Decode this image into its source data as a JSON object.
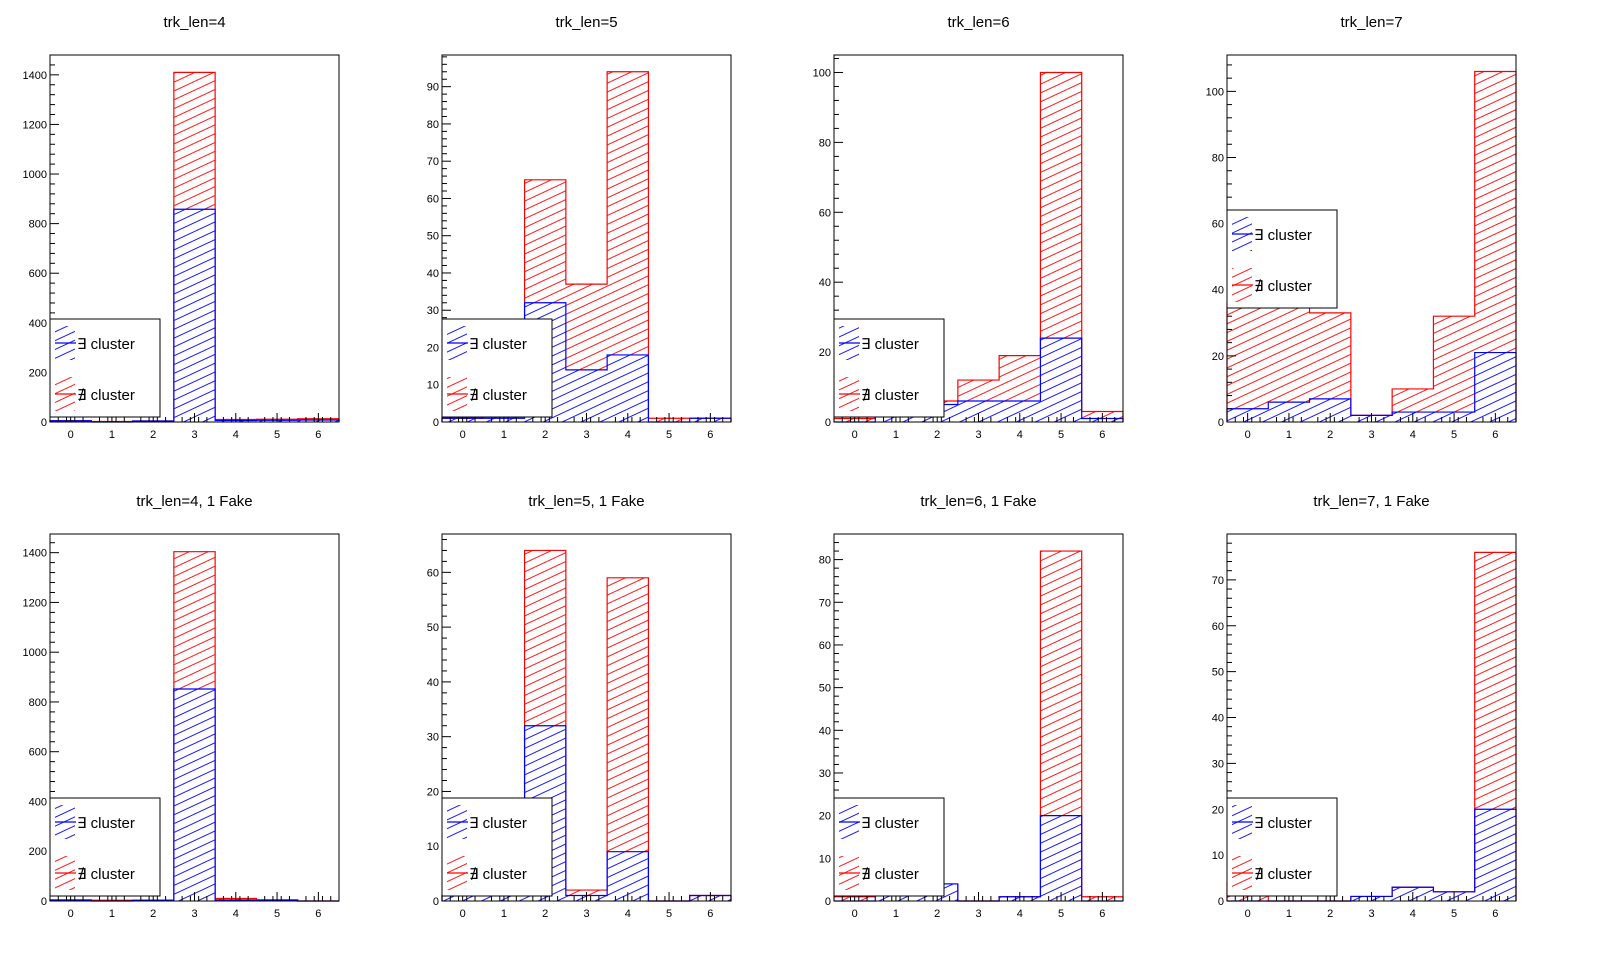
{
  "colors": {
    "exists": "#0000ff",
    "not_exists": "#ff0000",
    "frame": "#000000"
  },
  "legend": {
    "exists_label": "∃ cluster",
    "not_exists_label": "∄ cluster"
  },
  "chart_data": [
    {
      "type": "bar",
      "stacked": true,
      "title": "trk_len=4",
      "categories": [
        "0",
        "1",
        "2",
        "3",
        "4",
        "5",
        "6"
      ],
      "xlabel": "",
      "ylabel": "",
      "ylim": [
        0,
        1480
      ],
      "yticks": [
        0,
        200,
        400,
        600,
        800,
        1000,
        1200,
        1400
      ],
      "legend_position": "bottom-left",
      "series": [
        {
          "name": "∃ cluster",
          "values": [
            5,
            0,
            4,
            858,
            6,
            7,
            8
          ]
        },
        {
          "name": "∄ cluster",
          "values": [
            0,
            2,
            0,
            552,
            4,
            4,
            5
          ]
        }
      ]
    },
    {
      "type": "bar",
      "stacked": true,
      "title": "trk_len=5",
      "categories": [
        "0",
        "1",
        "2",
        "3",
        "4",
        "5",
        "6"
      ],
      "xlabel": "",
      "ylabel": "",
      "ylim": [
        0,
        98.5
      ],
      "yticks": [
        0,
        10,
        20,
        30,
        40,
        50,
        60,
        70,
        80,
        90
      ],
      "legend_position": "bottom-left",
      "series": [
        {
          "name": "∃ cluster",
          "values": [
            1,
            1,
            32,
            14,
            18,
            0,
            1
          ]
        },
        {
          "name": "∄ cluster",
          "values": [
            0,
            1,
            33,
            23,
            76,
            1,
            0
          ]
        }
      ]
    },
    {
      "type": "bar",
      "stacked": true,
      "title": "trk_len=6",
      "categories": [
        "0",
        "1",
        "2",
        "3",
        "4",
        "5",
        "6"
      ],
      "xlabel": "",
      "ylabel": "",
      "ylim": [
        0,
        105
      ],
      "yticks": [
        0,
        20,
        40,
        60,
        80,
        100
      ],
      "legend_position": "bottom-left",
      "series": [
        {
          "name": "∃ cluster",
          "values": [
            0,
            3,
            5,
            6,
            6,
            24,
            1
          ]
        },
        {
          "name": "∄ cluster",
          "values": [
            1,
            2,
            1,
            6,
            13,
            76,
            2
          ]
        }
      ]
    },
    {
      "type": "bar",
      "stacked": true,
      "title": "trk_len=7",
      "categories": [
        "0",
        "1",
        "2",
        "3",
        "4",
        "5",
        "6"
      ],
      "xlabel": "",
      "ylabel": "",
      "ylim": [
        0,
        111
      ],
      "yticks": [
        0,
        20,
        40,
        60,
        80,
        100
      ],
      "legend_position": "middle-left",
      "series": [
        {
          "name": "∃ cluster",
          "values": [
            4,
            6,
            7,
            2,
            3,
            3,
            21
          ]
        },
        {
          "name": "∄ cluster",
          "values": [
            32,
            31,
            26,
            0,
            7,
            29,
            85
          ]
        }
      ]
    },
    {
      "type": "bar",
      "stacked": true,
      "title": "trk_len=4, 1 Fake",
      "categories": [
        "0",
        "1",
        "2",
        "3",
        "4",
        "5",
        "6"
      ],
      "xlabel": "",
      "ylabel": "",
      "ylim": [
        0,
        1475
      ],
      "yticks": [
        0,
        200,
        400,
        600,
        800,
        1000,
        1200,
        1400
      ],
      "legend_position": "bottom-left",
      "series": [
        {
          "name": "∃ cluster",
          "values": [
            4,
            0,
            3,
            852,
            4,
            4,
            0
          ]
        },
        {
          "name": "∄ cluster",
          "values": [
            0,
            3,
            0,
            552,
            6,
            0,
            0
          ]
        }
      ]
    },
    {
      "type": "bar",
      "stacked": true,
      "title": "trk_len=5, 1 Fake",
      "categories": [
        "0",
        "1",
        "2",
        "3",
        "4",
        "5",
        "6"
      ],
      "xlabel": "",
      "ylabel": "",
      "ylim": [
        0,
        67
      ],
      "yticks": [
        0,
        10,
        20,
        30,
        40,
        50,
        60
      ],
      "legend_position": "bottom-left",
      "series": [
        {
          "name": "∃ cluster",
          "values": [
            1,
            1,
            32,
            1,
            9,
            0,
            1
          ]
        },
        {
          "name": "∄ cluster",
          "values": [
            0,
            0,
            32,
            1,
            50,
            0,
            0
          ]
        }
      ]
    },
    {
      "type": "bar",
      "stacked": true,
      "title": "trk_len=6, 1 Fake",
      "categories": [
        "0",
        "1",
        "2",
        "3",
        "4",
        "5",
        "6"
      ],
      "xlabel": "",
      "ylabel": "",
      "ylim": [
        0,
        86
      ],
      "yticks": [
        0,
        10,
        20,
        30,
        40,
        50,
        60,
        70,
        80
      ],
      "legend_position": "bottom-left",
      "series": [
        {
          "name": "∃ cluster",
          "values": [
            0,
            3,
            4,
            0,
            1,
            20,
            0
          ]
        },
        {
          "name": "∄ cluster",
          "values": [
            1,
            2,
            0,
            0,
            0,
            62,
            1
          ]
        }
      ]
    },
    {
      "type": "bar",
      "stacked": true,
      "title": "trk_len=7, 1 Fake",
      "categories": [
        "0",
        "1",
        "2",
        "3",
        "4",
        "5",
        "6"
      ],
      "xlabel": "",
      "ylabel": "",
      "ylim": [
        0,
        80
      ],
      "yticks": [
        0,
        10,
        20,
        30,
        40,
        50,
        60,
        70
      ],
      "legend_position": "bottom-left",
      "series": [
        {
          "name": "∃ cluster",
          "values": [
            0,
            0,
            0,
            1,
            3,
            2,
            20
          ]
        },
        {
          "name": "∄ cluster",
          "values": [
            4,
            0,
            0,
            0,
            0,
            0,
            56
          ]
        }
      ]
    }
  ]
}
